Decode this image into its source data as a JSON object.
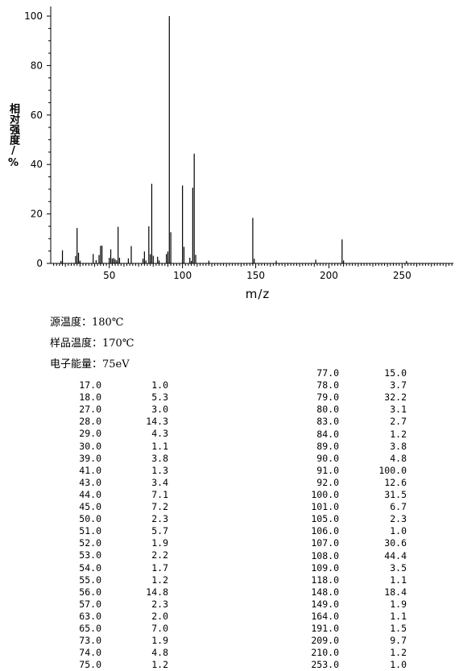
{
  "chart_data": {
    "type": "bar",
    "xlabel": "m/z",
    "ylabel": "相对强度/%",
    "xlim": [
      10,
      285
    ],
    "ylim": [
      0,
      105
    ],
    "xticks": [
      50,
      100,
      150,
      200,
      250
    ],
    "yticks": [
      0,
      20,
      40,
      60,
      80,
      100
    ],
    "peaks": [
      [
        17,
        1.0
      ],
      [
        18,
        5.3
      ],
      [
        27,
        3.0
      ],
      [
        28,
        14.3
      ],
      [
        29,
        4.3
      ],
      [
        30,
        1.1
      ],
      [
        39,
        3.8
      ],
      [
        41,
        1.3
      ],
      [
        43,
        3.4
      ],
      [
        44,
        7.1
      ],
      [
        45,
        7.2
      ],
      [
        50,
        2.3
      ],
      [
        51,
        5.7
      ],
      [
        52,
        1.9
      ],
      [
        53,
        2.2
      ],
      [
        54,
        1.7
      ],
      [
        55,
        1.2
      ],
      [
        56,
        14.8
      ],
      [
        57,
        2.3
      ],
      [
        63,
        2.0
      ],
      [
        65,
        7.0
      ],
      [
        73,
        1.9
      ],
      [
        74,
        4.8
      ],
      [
        75,
        1.2
      ],
      [
        77,
        15.0
      ],
      [
        78,
        3.7
      ],
      [
        79,
        32.2
      ],
      [
        80,
        3.1
      ],
      [
        83,
        2.7
      ],
      [
        84,
        1.2
      ],
      [
        89,
        3.8
      ],
      [
        90,
        4.8
      ],
      [
        91,
        100.0
      ],
      [
        92,
        12.6
      ],
      [
        100,
        31.5
      ],
      [
        101,
        6.7
      ],
      [
        105,
        2.3
      ],
      [
        106,
        1.0
      ],
      [
        107,
        30.6
      ],
      [
        108,
        44.4
      ],
      [
        109,
        3.5
      ],
      [
        118,
        1.1
      ],
      [
        148,
        18.4
      ],
      [
        149,
        1.9
      ],
      [
        164,
        1.1
      ],
      [
        191,
        1.5
      ],
      [
        209,
        9.7
      ],
      [
        210,
        1.2
      ],
      [
        253,
        1.0
      ]
    ]
  },
  "conditions": {
    "source_temp": "源温度：180℃",
    "sample_temp": "样品温度：170℃",
    "electron_energy": "电子能量：75eV"
  },
  "table_left": [
    [
      "17.0",
      "1.0"
    ],
    [
      "18.0",
      "5.3"
    ],
    [
      "27.0",
      "3.0"
    ],
    [
      "28.0",
      "14.3"
    ],
    [
      "29.0",
      "4.3"
    ],
    [
      "30.0",
      "1.1"
    ],
    [
      "39.0",
      "3.8"
    ],
    [
      "41.0",
      "1.3"
    ],
    [
      "43.0",
      "3.4"
    ],
    [
      "44.0",
      "7.1"
    ],
    [
      "45.0",
      "7.2"
    ],
    [
      "50.0",
      "2.3"
    ],
    [
      "51.0",
      "5.7"
    ],
    [
      "52.0",
      "1.9"
    ],
    [
      "53.0",
      "2.2"
    ],
    [
      "54.0",
      "1.7"
    ],
    [
      "55.0",
      "1.2"
    ],
    [
      "56.0",
      "14.8"
    ],
    [
      "57.0",
      "2.3"
    ],
    [
      "63.0",
      "2.0"
    ],
    [
      "65.0",
      "7.0"
    ],
    [
      "73.0",
      "1.9"
    ],
    [
      "74.0",
      "4.8"
    ],
    [
      "75.0",
      "1.2"
    ]
  ],
  "table_right": [
    [
      "77.0",
      "15.0"
    ],
    [
      "78.0",
      "3.7"
    ],
    [
      "79.0",
      "32.2"
    ],
    [
      "80.0",
      "3.1"
    ],
    [
      "83.0",
      "2.7"
    ],
    [
      "84.0",
      "1.2"
    ],
    [
      "89.0",
      "3.8"
    ],
    [
      "90.0",
      "4.8"
    ],
    [
      "91.0",
      "100.0"
    ],
    [
      "92.0",
      "12.6"
    ],
    [
      "100.0",
      "31.5"
    ],
    [
      "101.0",
      "6.7"
    ],
    [
      "105.0",
      "2.3"
    ],
    [
      "106.0",
      "1.0"
    ],
    [
      "107.0",
      "30.6"
    ],
    [
      "108.0",
      "44.4"
    ],
    [
      "109.0",
      "3.5"
    ],
    [
      "118.0",
      "1.1"
    ],
    [
      "148.0",
      "18.4"
    ],
    [
      "149.0",
      "1.9"
    ],
    [
      "164.0",
      "1.1"
    ],
    [
      "191.0",
      "1.5"
    ],
    [
      "209.0",
      "9.7"
    ],
    [
      "210.0",
      "1.2"
    ],
    [
      "253.0",
      "1.0"
    ]
  ]
}
